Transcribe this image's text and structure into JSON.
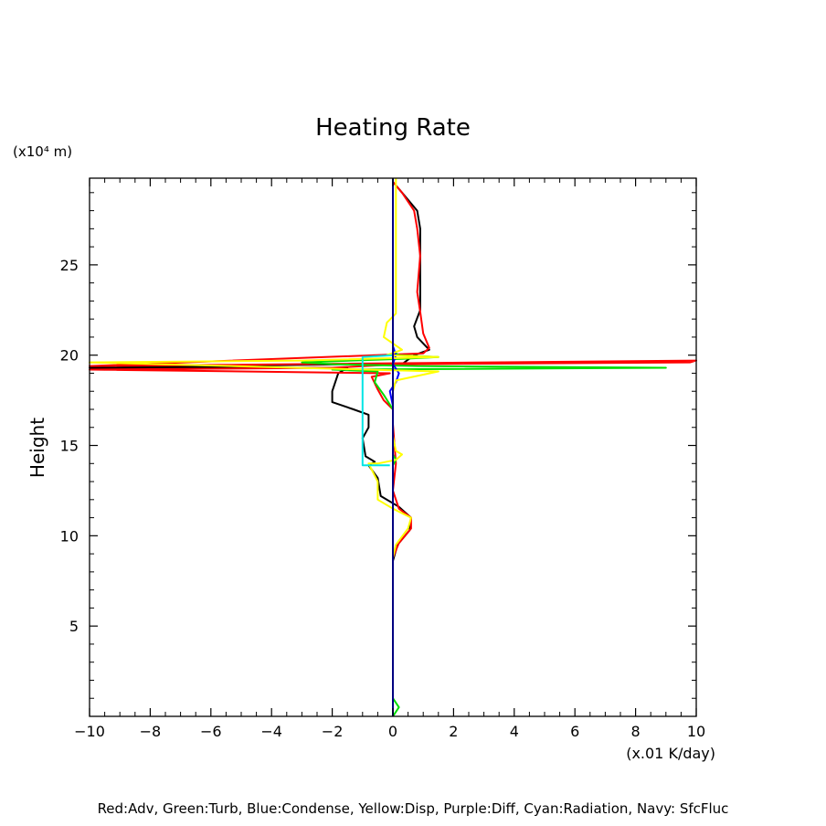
{
  "chart_data": {
    "type": "line",
    "title": "Heating Rate",
    "xlabel": "(x.01 K/day)",
    "ylabel": "Height",
    "y_unit": "(x10⁴ m)",
    "footer": "Red:Adv, Green:Turb, Blue:Condense, Yellow:Disp, Purple:Diff, Cyan:Radiation, Navy: SfcFluc",
    "xlim": [
      -10,
      10
    ],
    "ylim": [
      0,
      29.8
    ],
    "xticks": [
      -10,
      -8,
      -6,
      -4,
      -2,
      0,
      2,
      4,
      6,
      8,
      10
    ],
    "yticks": [
      5,
      10,
      15,
      20,
      25
    ],
    "grid": false,
    "series": [
      {
        "name": "Black",
        "color": "#000000",
        "points": [
          [
            0,
            8.6
          ],
          [
            0.15,
            9.5
          ],
          [
            0.55,
            10.3
          ],
          [
            0.6,
            11.0
          ],
          [
            0.2,
            11.6
          ],
          [
            -0.4,
            12.2
          ],
          [
            -0.5,
            13.2
          ],
          [
            -0.8,
            13.9
          ],
          [
            -0.6,
            14.1
          ],
          [
            -0.9,
            14.4
          ],
          [
            -1.0,
            15.4
          ],
          [
            -0.8,
            16.0
          ],
          [
            -0.8,
            16.7
          ],
          [
            -1.3,
            17.0
          ],
          [
            -2.0,
            17.4
          ],
          [
            -2.0,
            18.0
          ],
          [
            -1.8,
            19.0
          ],
          [
            -1.5,
            19.3
          ],
          [
            -10.0,
            19.3
          ],
          [
            -1.5,
            19.5
          ],
          [
            0.3,
            19.5
          ],
          [
            0.7,
            20.0
          ],
          [
            1.2,
            20.3
          ],
          [
            0.8,
            21.0
          ],
          [
            0.7,
            21.6
          ],
          [
            0.9,
            22.5
          ],
          [
            0.9,
            25.0
          ],
          [
            0.9,
            27.0
          ],
          [
            0.8,
            28.0
          ],
          [
            0.3,
            29.0
          ],
          [
            0,
            29.6
          ]
        ]
      },
      {
        "name": "Red:Adv",
        "color": "#ff0000",
        "points": [
          [
            0,
            8.8
          ],
          [
            0.2,
            9.6
          ],
          [
            0.6,
            10.4
          ],
          [
            0.6,
            11.0
          ],
          [
            0.2,
            11.5
          ],
          [
            0.0,
            12.5
          ],
          [
            0.1,
            14.0
          ],
          [
            0.0,
            16.2
          ],
          [
            0.0,
            17.0
          ],
          [
            -0.3,
            17.5
          ],
          [
            -0.5,
            18.1
          ],
          [
            -0.7,
            18.8
          ],
          [
            -0.1,
            19.0
          ],
          [
            -10.0,
            19.2
          ],
          [
            -2.0,
            19.3
          ],
          [
            0.2,
            19.5
          ],
          [
            9.8,
            19.6
          ],
          [
            10.0,
            19.7
          ],
          [
            -10.0,
            19.4
          ],
          [
            1.0,
            20.1
          ],
          [
            1.2,
            20.4
          ],
          [
            1.0,
            21.2
          ],
          [
            0.9,
            22.4
          ],
          [
            0.8,
            23.5
          ],
          [
            0.9,
            25.5
          ],
          [
            0.8,
            27.0
          ],
          [
            0.7,
            28.0
          ],
          [
            0.3,
            29.0
          ],
          [
            0,
            29.6
          ]
        ]
      },
      {
        "name": "Green:Turb",
        "color": "#00dd00",
        "points": [
          [
            0,
            0
          ],
          [
            0.2,
            0.5
          ],
          [
            0,
            1.0
          ],
          [
            0,
            13.9
          ],
          [
            0.1,
            14.2
          ],
          [
            0,
            14.5
          ],
          [
            0,
            17.0
          ],
          [
            -0.3,
            17.8
          ],
          [
            -0.6,
            18.5
          ],
          [
            -0.5,
            19.1
          ],
          [
            -2.0,
            19.2
          ],
          [
            9.0,
            19.3
          ],
          [
            0.8,
            19.4
          ],
          [
            -2.0,
            19.5
          ],
          [
            -3.0,
            19.6
          ],
          [
            0.3,
            19.8
          ],
          [
            1.5,
            19.9
          ],
          [
            0.2,
            20.0
          ],
          [
            0,
            20.2
          ],
          [
            0,
            29.8
          ]
        ]
      },
      {
        "name": "Blue:Condense",
        "color": "#0000ff",
        "points": [
          [
            0,
            0
          ],
          [
            0,
            17.2
          ],
          [
            -0.1,
            18.0
          ],
          [
            0.1,
            18.5
          ],
          [
            0.2,
            19.0
          ],
          [
            0.0,
            19.5
          ],
          [
            0.1,
            20.0
          ],
          [
            0,
            20.5
          ],
          [
            0,
            29.8
          ]
        ]
      },
      {
        "name": "Yellow:Disp",
        "color": "#ffff00",
        "points": [
          [
            0,
            0
          ],
          [
            0,
            8.8
          ],
          [
            0.1,
            9.5
          ],
          [
            0.5,
            10.4
          ],
          [
            0.6,
            11.0
          ],
          [
            0.0,
            11.5
          ],
          [
            -0.5,
            12.0
          ],
          [
            -0.5,
            13.0
          ],
          [
            -0.8,
            14.0
          ],
          [
            -0.5,
            14.0
          ],
          [
            0.1,
            14.2
          ],
          [
            0.3,
            14.5
          ],
          [
            0.1,
            14.7
          ],
          [
            0.0,
            15.5
          ],
          [
            0,
            16.5
          ],
          [
            0,
            18.0
          ],
          [
            0.1,
            18.6
          ],
          [
            1.5,
            19.1
          ],
          [
            -10.0,
            19.6
          ],
          [
            -3.0,
            19.7
          ],
          [
            1.5,
            19.9
          ],
          [
            -0.2,
            20.0
          ],
          [
            0.3,
            20.3
          ],
          [
            -0.3,
            21.0
          ],
          [
            -0.2,
            21.8
          ],
          [
            0.1,
            22.3
          ],
          [
            0.1,
            24.0
          ],
          [
            0.1,
            29.0
          ],
          [
            0.1,
            29.8
          ]
        ]
      },
      {
        "name": "Purple:Diff",
        "color": "#a000a0",
        "points": [
          [
            0,
            0
          ],
          [
            0,
            10.0
          ],
          [
            0,
            11.5
          ],
          [
            0,
            16.0
          ],
          [
            0,
            17.0
          ],
          [
            0,
            29.8
          ]
        ]
      },
      {
        "name": "Cyan:Radiation",
        "color": "#00e5e5",
        "points": [
          [
            -0.1,
            13.9
          ],
          [
            -1.0,
            13.9
          ],
          [
            -1.0,
            19.9
          ],
          [
            0.0,
            20.0
          ],
          [
            0,
            20.1
          ]
        ]
      },
      {
        "name": "Navy: SfcFluc",
        "color": "#000080",
        "points": [
          [
            0,
            0
          ],
          [
            0,
            29.8
          ]
        ]
      }
    ]
  }
}
